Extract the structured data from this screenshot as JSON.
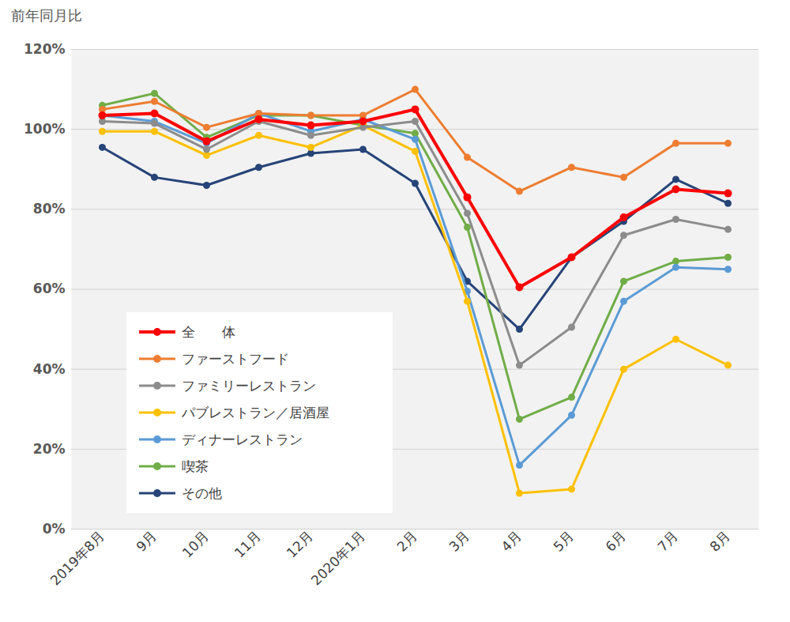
{
  "chart_data": {
    "type": "line",
    "ylabel": "前年同月比",
    "categories": [
      "2019年8月",
      "9月",
      "10月",
      "11月",
      "12月",
      "2020年1月",
      "2月",
      "3月",
      "4月",
      "5月",
      "6月",
      "7月",
      "8月"
    ],
    "series": [
      {
        "name": "全　　体",
        "color": "#ff0000",
        "values": [
          103.5,
          104,
          97,
          102.5,
          101,
          102,
          105,
          83,
          60.5,
          68,
          78,
          85,
          84
        ]
      },
      {
        "name": "ファーストフード",
        "color": "#ed7d31",
        "values": [
          105,
          107,
          100.5,
          104,
          103.5,
          103.5,
          110,
          93,
          84.5,
          90.5,
          88,
          96.5,
          96.5
        ]
      },
      {
        "name": "ファミリーレストラン",
        "color": "#8c8c8c",
        "values": [
          102,
          101.5,
          95,
          102,
          98.5,
          100.5,
          102,
          79,
          41,
          50.5,
          73.5,
          77.5,
          75
        ]
      },
      {
        "name": "パブレストラン／居酒屋",
        "color": "#ffc000",
        "values": [
          99.5,
          99.5,
          93.5,
          98.5,
          95.5,
          101,
          94.5,
          57,
          9,
          10,
          40,
          47.5,
          41
        ]
      },
      {
        "name": "ディナーレストラン",
        "color": "#5b9bd5",
        "values": [
          103.5,
          102,
          96.5,
          104,
          99.5,
          102.5,
          97.5,
          59.5,
          16,
          28.5,
          57,
          65.5,
          65
        ]
      },
      {
        "name": "喫茶",
        "color": "#70ad47",
        "values": [
          106,
          109,
          98,
          103.5,
          103.5,
          101,
          99,
          75.5,
          27.5,
          33,
          62,
          67,
          68
        ]
      },
      {
        "name": "その他",
        "color": "#264478",
        "values": [
          95.5,
          88,
          86,
          90.5,
          94,
          95,
          86.5,
          62,
          50,
          68,
          77,
          87.5,
          81.5
        ]
      }
    ],
    "ylim": [
      0,
      120
    ],
    "yticks": [
      {
        "value": 0,
        "label": "0%"
      },
      {
        "value": 20,
        "label": "20%"
      },
      {
        "value": 40,
        "label": "40%"
      },
      {
        "value": 60,
        "label": "60%"
      },
      {
        "value": 80,
        "label": "80%"
      },
      {
        "value": 100,
        "label": "100%"
      },
      {
        "value": 120,
        "label": "120%"
      }
    ],
    "grid": true,
    "legend": "lower left",
    "marker": "circle"
  }
}
